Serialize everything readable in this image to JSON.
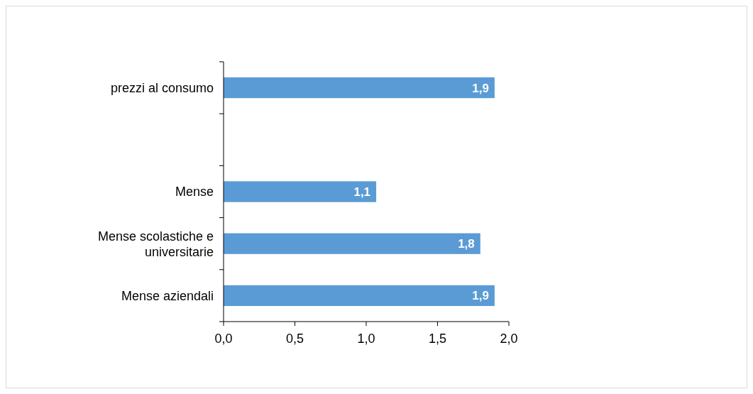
{
  "chart_data": {
    "type": "bar",
    "orientation": "horizontal",
    "categories": [
      "prezzi al consumo",
      null,
      "Mense",
      "Mense scolastiche e universitarie",
      "Mense aziendali"
    ],
    "values": [
      1.9,
      null,
      1.07,
      1.8,
      1.9
    ],
    "value_labels": [
      "1,9",
      null,
      "1,1",
      "1,8",
      "1,9"
    ],
    "color": "#5b9bd5",
    "xlim": [
      0,
      2
    ],
    "xticks": [
      {
        "value": 0,
        "label": "0,0"
      },
      {
        "value": 0.5,
        "label": "0,5"
      },
      {
        "value": 1,
        "label": "1,0"
      },
      {
        "value": 1.5,
        "label": "1,5"
      },
      {
        "value": 2,
        "label": "2,0"
      }
    ],
    "grid": false
  }
}
